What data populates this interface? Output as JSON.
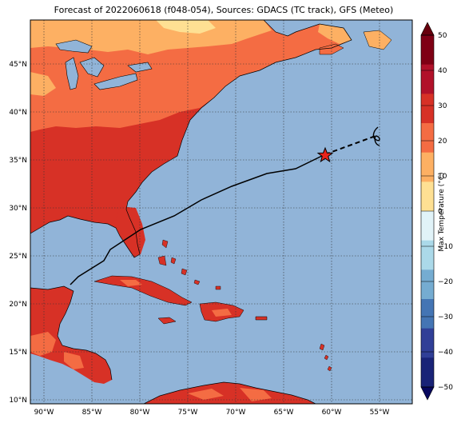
{
  "title": "Forecast of 2022060618 (f048-054), Sources: GDACS (TC track), GFS (Meteo)",
  "colorbar": {
    "label": "Max Temperature (°C)",
    "ticks": [
      "50",
      "40",
      "30",
      "20",
      "10",
      "0",
      "−10",
      "−20",
      "−30",
      "−40",
      "−50"
    ],
    "colors": [
      "#7f0015",
      "#b1112a",
      "#d73126",
      "#f46c43",
      "#fdb063",
      "#fee093",
      "#e1f3f8",
      "#abd9e9",
      "#75acd1",
      "#4475b4",
      "#303f97",
      "#192377"
    ]
  },
  "axes": {
    "lon_labels": [
      "90°W",
      "85°W",
      "80°W",
      "75°W",
      "70°W",
      "65°W",
      "60°W",
      "55°W"
    ],
    "lat_labels": [
      "45°N",
      "40°N",
      "35°N",
      "30°N",
      "25°N",
      "20°N",
      "15°N",
      "10°N"
    ]
  },
  "track": {
    "forecast_point": {
      "lon": -60.5,
      "lat": 35.5
    },
    "marker": "star-icon"
  }
}
